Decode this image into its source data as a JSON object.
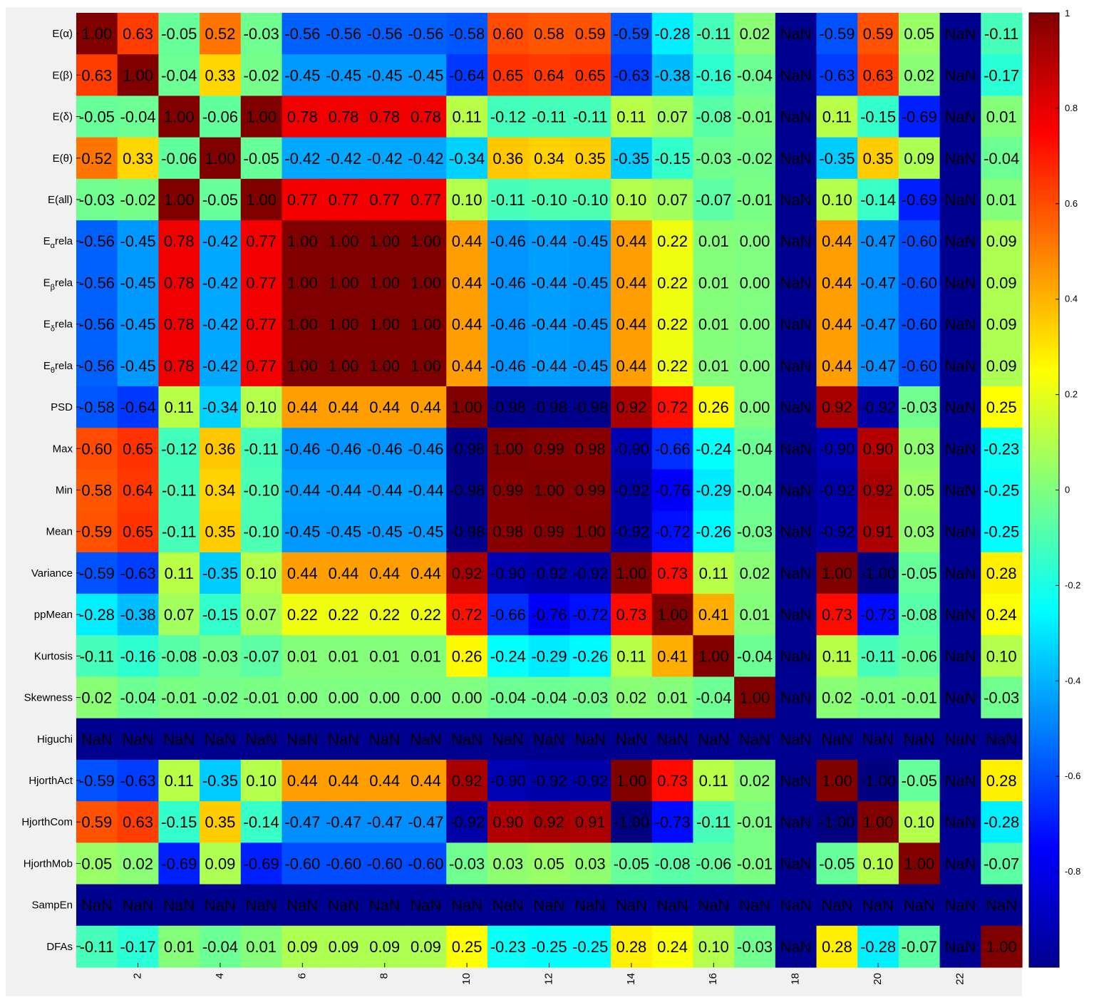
{
  "chart_data": {
    "type": "heatmap",
    "title": "",
    "xlabel": "",
    "ylabel": "",
    "colormap": "jet",
    "value_range": [
      -1,
      1
    ],
    "row_labels": [
      "E(α)",
      "E(β)",
      "E(δ)",
      "E(θ)",
      "E(all)",
      "Eαrela",
      "Eβrela",
      "Eδrela",
      "Eθrela",
      "PSD",
      "Max",
      "Min",
      "Mean",
      "Variance",
      "ppMean",
      "Kurtosis",
      "Skewness",
      "Higuchi",
      "HjorthAct",
      "HjorthCom",
      "HjorthMob",
      "SampEn",
      "DFAs"
    ],
    "row_label_parts": [
      {
        "base": "E(α)",
        "sub": "",
        "tail": ""
      },
      {
        "base": "E(β)",
        "sub": "",
        "tail": ""
      },
      {
        "base": "E(δ)",
        "sub": "",
        "tail": ""
      },
      {
        "base": "E(θ)",
        "sub": "",
        "tail": ""
      },
      {
        "base": "E(all)",
        "sub": "",
        "tail": ""
      },
      {
        "base": "E",
        "sub": "α",
        "tail": "rela"
      },
      {
        "base": "E",
        "sub": "β",
        "tail": "rela"
      },
      {
        "base": "E",
        "sub": "δ",
        "tail": "rela"
      },
      {
        "base": "E",
        "sub": "θ",
        "tail": "rela"
      },
      {
        "base": "PSD",
        "sub": "",
        "tail": ""
      },
      {
        "base": "Max",
        "sub": "",
        "tail": ""
      },
      {
        "base": "Min",
        "sub": "",
        "tail": ""
      },
      {
        "base": "Mean",
        "sub": "",
        "tail": ""
      },
      {
        "base": "Variance",
        "sub": "",
        "tail": ""
      },
      {
        "base": "ppMean",
        "sub": "",
        "tail": ""
      },
      {
        "base": "Kurtosis",
        "sub": "",
        "tail": ""
      },
      {
        "base": "Skewness",
        "sub": "",
        "tail": ""
      },
      {
        "base": "Higuchi",
        "sub": "",
        "tail": ""
      },
      {
        "base": "HjorthAct",
        "sub": "",
        "tail": ""
      },
      {
        "base": "HjorthCom",
        "sub": "",
        "tail": ""
      },
      {
        "base": "HjorthMob",
        "sub": "",
        "tail": ""
      },
      {
        "base": "SampEn",
        "sub": "",
        "tail": ""
      },
      {
        "base": "DFAs",
        "sub": "",
        "tail": ""
      }
    ],
    "x_ticks": [
      2,
      4,
      6,
      8,
      10,
      12,
      14,
      16,
      18,
      20,
      22
    ],
    "x_tick_labels": [
      "2",
      "4",
      "6",
      "8",
      "10",
      "12",
      "14",
      "16",
      "18",
      "20",
      "22"
    ],
    "colorbar_ticks": [
      1,
      0.8,
      0.6,
      0.4,
      0.2,
      0,
      -0.2,
      -0.4,
      -0.6,
      -0.8
    ],
    "colorbar_tick_labels": [
      "1",
      "0.8",
      "0.6",
      "0.4",
      "0.2",
      "0",
      "-0.2",
      "-0.4",
      "-0.6",
      "-0.8"
    ],
    "nan_label": "NaN",
    "values": [
      [
        1.0,
        0.63,
        -0.05,
        0.52,
        -0.03,
        -0.56,
        -0.56,
        -0.56,
        -0.56,
        -0.58,
        0.6,
        0.58,
        0.59,
        -0.59,
        -0.28,
        -0.11,
        0.02,
        null,
        -0.59,
        0.59,
        0.05,
        null,
        -0.11
      ],
      [
        0.63,
        1.0,
        -0.04,
        0.33,
        -0.02,
        -0.45,
        -0.45,
        -0.45,
        -0.45,
        -0.64,
        0.65,
        0.64,
        0.65,
        -0.63,
        -0.38,
        -0.16,
        -0.04,
        null,
        -0.63,
        0.63,
        0.02,
        null,
        -0.17
      ],
      [
        -0.05,
        -0.04,
        1.0,
        -0.06,
        1.0,
        0.78,
        0.78,
        0.78,
        0.78,
        0.11,
        -0.12,
        -0.11,
        -0.11,
        0.11,
        0.07,
        -0.08,
        -0.01,
        null,
        0.11,
        -0.15,
        -0.69,
        null,
        0.01
      ],
      [
        0.52,
        0.33,
        -0.06,
        1.0,
        -0.05,
        -0.42,
        -0.42,
        -0.42,
        -0.42,
        -0.34,
        0.36,
        0.34,
        0.35,
        -0.35,
        -0.15,
        -0.03,
        -0.02,
        null,
        -0.35,
        0.35,
        0.09,
        null,
        -0.04
      ],
      [
        -0.03,
        -0.02,
        1.0,
        -0.05,
        1.0,
        0.77,
        0.77,
        0.77,
        0.77,
        0.1,
        -0.11,
        -0.1,
        -0.1,
        0.1,
        0.07,
        -0.07,
        -0.01,
        null,
        0.1,
        -0.14,
        -0.69,
        null,
        0.01
      ],
      [
        -0.56,
        -0.45,
        0.78,
        -0.42,
        0.77,
        1.0,
        1.0,
        1.0,
        1.0,
        0.44,
        -0.46,
        -0.44,
        -0.45,
        0.44,
        0.22,
        0.01,
        0.0,
        null,
        0.44,
        -0.47,
        -0.6,
        null,
        0.09
      ],
      [
        -0.56,
        -0.45,
        0.78,
        -0.42,
        0.77,
        1.0,
        1.0,
        1.0,
        1.0,
        0.44,
        -0.46,
        -0.44,
        -0.45,
        0.44,
        0.22,
        0.01,
        0.0,
        null,
        0.44,
        -0.47,
        -0.6,
        null,
        0.09
      ],
      [
        -0.56,
        -0.45,
        0.78,
        -0.42,
        0.77,
        1.0,
        1.0,
        1.0,
        1.0,
        0.44,
        -0.46,
        -0.44,
        -0.45,
        0.44,
        0.22,
        0.01,
        0.0,
        null,
        0.44,
        -0.47,
        -0.6,
        null,
        0.09
      ],
      [
        -0.56,
        -0.45,
        0.78,
        -0.42,
        0.77,
        1.0,
        1.0,
        1.0,
        1.0,
        0.44,
        -0.46,
        -0.44,
        -0.45,
        0.44,
        0.22,
        0.01,
        0.0,
        null,
        0.44,
        -0.47,
        -0.6,
        null,
        0.09
      ],
      [
        -0.58,
        -0.64,
        0.11,
        -0.34,
        0.1,
        0.44,
        0.44,
        0.44,
        0.44,
        1.0,
        -0.98,
        -0.98,
        -0.98,
        0.92,
        0.72,
        0.26,
        0.0,
        null,
        0.92,
        -0.92,
        -0.03,
        null,
        0.25
      ],
      [
        0.6,
        0.65,
        -0.12,
        0.36,
        -0.11,
        -0.46,
        -0.46,
        -0.46,
        -0.46,
        -0.98,
        1.0,
        0.99,
        0.98,
        -0.9,
        -0.66,
        -0.24,
        -0.04,
        null,
        -0.9,
        0.9,
        0.03,
        null,
        -0.23
      ],
      [
        0.58,
        0.64,
        -0.11,
        0.34,
        -0.1,
        -0.44,
        -0.44,
        -0.44,
        -0.44,
        -0.98,
        0.99,
        1.0,
        0.99,
        -0.92,
        -0.76,
        -0.29,
        -0.04,
        null,
        -0.92,
        0.92,
        0.05,
        null,
        -0.25
      ],
      [
        0.59,
        0.65,
        -0.11,
        0.35,
        -0.1,
        -0.45,
        -0.45,
        -0.45,
        -0.45,
        -0.98,
        0.98,
        0.99,
        1.0,
        -0.92,
        -0.72,
        -0.26,
        -0.03,
        null,
        -0.92,
        0.91,
        0.03,
        null,
        -0.25
      ],
      [
        -0.59,
        -0.63,
        0.11,
        -0.35,
        0.1,
        0.44,
        0.44,
        0.44,
        0.44,
        0.92,
        -0.9,
        -0.92,
        -0.92,
        1.0,
        0.73,
        0.11,
        0.02,
        null,
        1.0,
        -1.0,
        -0.05,
        null,
        0.28
      ],
      [
        -0.28,
        -0.38,
        0.07,
        -0.15,
        0.07,
        0.22,
        0.22,
        0.22,
        0.22,
        0.72,
        -0.66,
        -0.76,
        -0.72,
        0.73,
        1.0,
        0.41,
        0.01,
        null,
        0.73,
        -0.73,
        -0.08,
        null,
        0.24
      ],
      [
        -0.11,
        -0.16,
        -0.08,
        -0.03,
        -0.07,
        0.01,
        0.01,
        0.01,
        0.01,
        0.26,
        -0.24,
        -0.29,
        -0.26,
        0.11,
        0.41,
        1.0,
        -0.04,
        null,
        0.11,
        -0.11,
        -0.06,
        null,
        0.1
      ],
      [
        0.02,
        -0.04,
        -0.01,
        -0.02,
        -0.01,
        0.0,
        0.0,
        0.0,
        0.0,
        0.0,
        -0.04,
        -0.04,
        -0.03,
        0.02,
        0.01,
        -0.04,
        1.0,
        null,
        0.02,
        -0.01,
        -0.01,
        null,
        -0.03
      ],
      [
        null,
        null,
        null,
        null,
        null,
        null,
        null,
        null,
        null,
        null,
        null,
        null,
        null,
        null,
        null,
        null,
        null,
        null,
        null,
        null,
        null,
        null,
        null
      ],
      [
        -0.59,
        -0.63,
        0.11,
        -0.35,
        0.1,
        0.44,
        0.44,
        0.44,
        0.44,
        0.92,
        -0.9,
        -0.92,
        -0.92,
        1.0,
        0.73,
        0.11,
        0.02,
        null,
        1.0,
        -1.0,
        -0.05,
        null,
        0.28
      ],
      [
        0.59,
        0.63,
        -0.15,
        0.35,
        -0.14,
        -0.47,
        -0.47,
        -0.47,
        -0.47,
        -0.92,
        0.9,
        0.92,
        0.91,
        -1.0,
        -0.73,
        -0.11,
        -0.01,
        null,
        -1.0,
        1.0,
        0.1,
        null,
        -0.28
      ],
      [
        0.05,
        0.02,
        -0.69,
        0.09,
        -0.69,
        -0.6,
        -0.6,
        -0.6,
        -0.6,
        -0.03,
        0.03,
        0.05,
        0.03,
        -0.05,
        -0.08,
        -0.06,
        -0.01,
        null,
        -0.05,
        0.1,
        1.0,
        null,
        -0.07
      ],
      [
        null,
        null,
        null,
        null,
        null,
        null,
        null,
        null,
        null,
        null,
        null,
        null,
        null,
        null,
        null,
        null,
        null,
        null,
        null,
        null,
        null,
        null,
        null
      ],
      [
        -0.11,
        -0.17,
        0.01,
        -0.04,
        0.01,
        0.09,
        0.09,
        0.09,
        0.09,
        0.25,
        -0.23,
        -0.25,
        -0.25,
        0.28,
        0.24,
        0.1,
        -0.03,
        null,
        0.28,
        -0.28,
        -0.07,
        null,
        1.0
      ]
    ]
  }
}
